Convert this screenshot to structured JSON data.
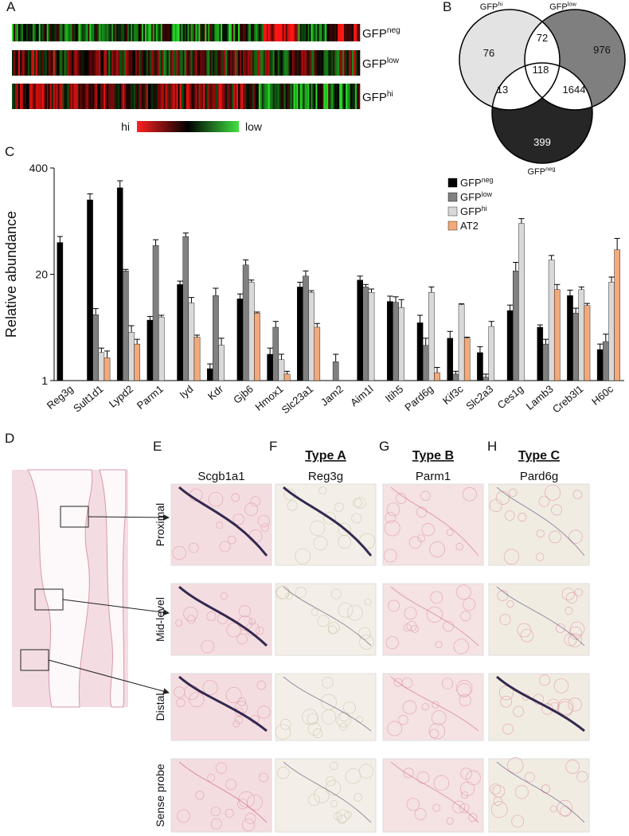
{
  "panels": [
    "A",
    "B",
    "C",
    "D",
    "E",
    "F",
    "G",
    "H"
  ],
  "heatmap": {
    "rows": [
      {
        "base": "GFP",
        "sup": "neg"
      },
      {
        "base": "GFP",
        "sup": "low"
      },
      {
        "base": "GFP",
        "sup": "hi"
      }
    ],
    "scale_high": "hi",
    "scale_low": "low"
  },
  "venn": {
    "sets": [
      {
        "base": "GFP",
        "sup": "hi"
      },
      {
        "base": "GFP",
        "sup": "low"
      },
      {
        "base": "GFP",
        "sup": "neg"
      }
    ],
    "hi_only": 76,
    "hi_low": 72,
    "low_only": 976,
    "all": 118,
    "hi_neg": 13,
    "low_neg": 1644,
    "neg_only": 399
  },
  "chart_data": {
    "type": "bar",
    "y_label": "Relative abundance",
    "log_scale": true,
    "ylim": [
      1,
      400
    ],
    "yticks": [
      1,
      20,
      400
    ],
    "categories": [
      "Reg3g",
      "Sult1d1",
      "Lypd2",
      "Parm1",
      "Iyd",
      "Kdr",
      "Gjb6",
      "Hmox1",
      "Slc23a1",
      "Jam2",
      "Aim1l",
      "Itih5",
      "Pard6g",
      "Kif3c",
      "Slc2a3",
      "Ces1g",
      "Lamb3",
      "Creb3l1",
      "H60c"
    ],
    "series": [
      {
        "name": {
          "base": "GFP",
          "sup": "neg"
        },
        "color": "#000000",
        "values": [
          49,
          163,
          229,
          5.5,
          15,
          1.4,
          10,
          2.1,
          14,
          null,
          17,
          9.3,
          5.1,
          3.3,
          2.2,
          7.2,
          4.5,
          11,
          2.4
        ],
        "errors": [
          9,
          30,
          50,
          0.6,
          1.5,
          0.2,
          1.5,
          0.4,
          2,
          null,
          2,
          1.5,
          1.2,
          0.7,
          0.4,
          1.2,
          0.3,
          1.8,
          0.4
        ]
      },
      {
        "name": {
          "base": "GFP",
          "sup": "low"
        },
        "color": "#808080",
        "values": [
          null,
          6.4,
          22,
          45,
          58,
          11,
          26,
          4.5,
          19,
          1.7,
          14,
          9.1,
          2.7,
          1.2,
          1.1,
          22,
          2.8,
          6.7,
          3
        ],
        "errors": [
          null,
          1.2,
          1,
          8,
          6,
          2.5,
          4,
          0.8,
          3,
          0.4,
          1,
          1.5,
          0.6,
          0.1,
          0.1,
          6,
          0.4,
          1,
          0.7
        ]
      },
      {
        "name": {
          "base": "GFP",
          "sup": "hi"
        },
        "color": "#d9d9d9",
        "values": [
          null,
          2.2,
          3.9,
          6,
          8.9,
          2.7,
          16,
          1.8,
          12,
          null,
          12,
          7.8,
          12,
          8.5,
          4.6,
          84,
          30,
          13,
          16
        ],
        "errors": [
          null,
          0.3,
          0.8,
          0.3,
          1.5,
          0.6,
          1,
          0.3,
          0.6,
          null,
          1.2,
          2,
          2,
          0.2,
          0.7,
          12,
          4,
          1,
          2.5
        ]
      },
      {
        "name": "AT2",
        "color": "#f4a97a",
        "values": [
          null,
          1.9,
          2.8,
          null,
          3.4,
          null,
          6.7,
          1.2,
          4.5,
          null,
          null,
          null,
          1.25,
          3.3,
          null,
          null,
          13,
          8.3,
          40
        ],
        "errors": [
          null,
          0.4,
          0.4,
          null,
          0.2,
          null,
          0.2,
          0.1,
          0.5,
          null,
          null,
          null,
          0.2,
          0.1,
          null,
          null,
          2,
          0.5,
          15
        ]
      }
    ]
  },
  "histology": {
    "columns": [
      {
        "type": null,
        "probe": "Scgb1a1"
      },
      {
        "type": "Type A",
        "probe": "Reg3g"
      },
      {
        "type": "Type B",
        "probe": "Parm1"
      },
      {
        "type": "Type C",
        "probe": "Pard6g"
      }
    ],
    "rows": [
      "Proximal",
      "Mid-level",
      "Distal",
      "Sense probe"
    ]
  }
}
